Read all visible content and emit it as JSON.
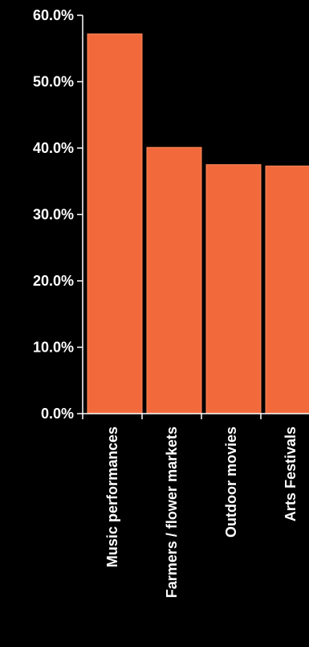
{
  "chart_data": {
    "type": "bar",
    "categories": [
      "Music performances",
      "Farmers / flower markets",
      "Outdoor movies",
      "Arts Festivals"
    ],
    "values": [
      57.2,
      40.1,
      37.5,
      37.3
    ],
    "ylim": [
      0,
      60
    ],
    "yticks": [
      0,
      10,
      20,
      30,
      40,
      50,
      60
    ],
    "ytick_labels": [
      "0.0%",
      "10.0%",
      "20.0%",
      "30.0%",
      "40.0%",
      "50.0%",
      "60.0%"
    ],
    "title": "",
    "xlabel": "",
    "ylabel": "",
    "grid": false,
    "bar_color": "#f26a3c",
    "bar_edge_color": "#ff8a5c",
    "axis_color": "#ffffff",
    "background": "#000000"
  }
}
